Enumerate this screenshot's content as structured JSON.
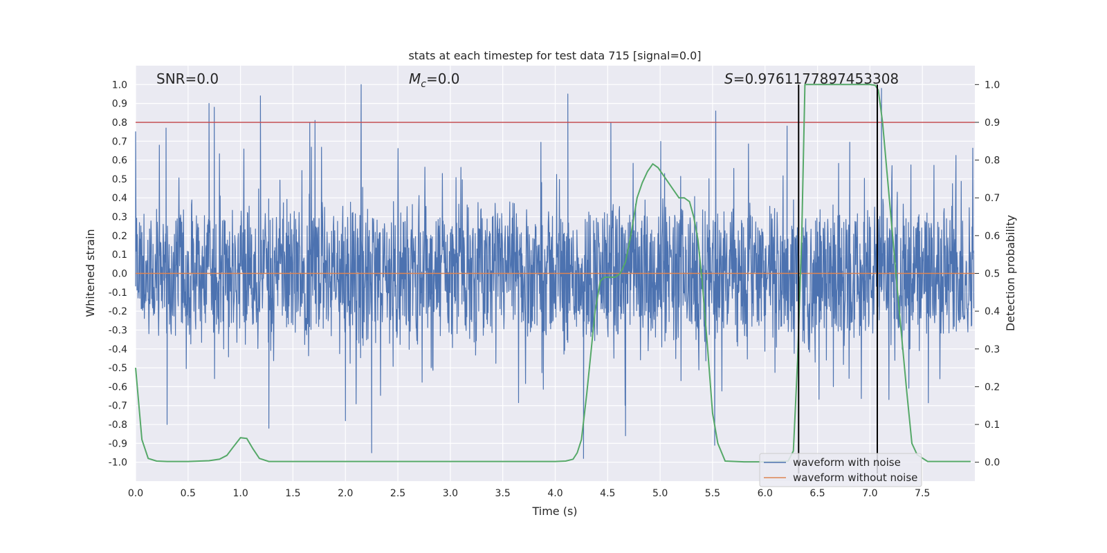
{
  "chart_data": {
    "type": "line",
    "title": "stats at each timestep for test data 715 [signal=0.0]",
    "xlabel": "Time (s)",
    "ylabel_left": "Whitened strain",
    "ylabel_right": "Detection probability",
    "xlim": [
      0.0,
      8.0
    ],
    "ylim_left": [
      -1.1,
      1.1
    ],
    "ylim_right": [
      -0.05,
      1.05
    ],
    "x_ticks": [
      "0.0",
      "0.5",
      "1.0",
      "1.5",
      "2.0",
      "2.5",
      "3.0",
      "3.5",
      "4.0",
      "4.5",
      "5.0",
      "5.5",
      "6.0",
      "6.5",
      "7.0",
      "7.5"
    ],
    "y_ticks_left": [
      "-1.0",
      "-0.9",
      "-0.8",
      "-0.7",
      "-0.6",
      "-0.5",
      "-0.4",
      "-0.3",
      "-0.2",
      "-0.1",
      "0.0",
      "0.1",
      "0.2",
      "0.3",
      "0.4",
      "0.5",
      "0.6",
      "0.7",
      "0.8",
      "0.9",
      "1.0"
    ],
    "y_ticks_right": [
      "0.0",
      "0.1",
      "0.2",
      "0.3",
      "0.4",
      "0.5",
      "0.6",
      "0.7",
      "0.8",
      "0.9",
      "1.0"
    ],
    "annotations": {
      "snr": "SNR=0.0",
      "mc_symbol": "M",
      "mc_sub": "c",
      "mc_value": "=0.0",
      "s_symbol": "S",
      "s_value": "=0.9761177897453308"
    },
    "legend": {
      "placement": "lower-right",
      "entries": [
        "waveform with noise",
        "waveform without noise"
      ]
    },
    "threshold_right": 0.9,
    "vertical_markers_x": [
      6.32,
      7.07
    ],
    "noisy_waveform_envelope": {
      "max_abs_typical": 0.42,
      "spike_peaks_positive": [
        {
          "x": 0.0,
          "y": 0.75
        },
        {
          "x": 0.29,
          "y": 0.77
        },
        {
          "x": 0.7,
          "y": 0.9
        },
        {
          "x": 0.75,
          "y": 0.88
        },
        {
          "x": 1.19,
          "y": 0.94
        },
        {
          "x": 1.66,
          "y": 0.8
        },
        {
          "x": 1.71,
          "y": 0.81
        },
        {
          "x": 2.15,
          "y": 1.0
        },
        {
          "x": 4.12,
          "y": 0.95
        },
        {
          "x": 4.53,
          "y": 0.8
        },
        {
          "x": 5.53,
          "y": 0.86
        },
        {
          "x": 6.21,
          "y": 0.78
        },
        {
          "x": 7.11,
          "y": 0.98
        }
      ],
      "spike_peaks_negative": [
        {
          "x": 0.3,
          "y": -0.8
        },
        {
          "x": 1.27,
          "y": -0.82
        },
        {
          "x": 2.0,
          "y": -0.78
        },
        {
          "x": 2.25,
          "y": -0.95
        },
        {
          "x": 4.27,
          "y": -0.98
        },
        {
          "x": 4.67,
          "y": -0.86
        },
        {
          "x": 5.52,
          "y": -0.91
        }
      ]
    },
    "clean_waveform": {
      "x": [
        0.0,
        8.0
      ],
      "y": [
        0.0,
        0.0
      ]
    },
    "detection_probability": {
      "x": [
        0.0,
        0.06,
        0.12,
        0.2,
        0.3,
        0.5,
        0.7,
        0.8,
        0.87,
        0.93,
        1.0,
        1.06,
        1.12,
        1.18,
        1.27,
        1.5,
        2.0,
        3.0,
        4.0,
        4.1,
        4.17,
        4.21,
        4.25,
        4.3,
        4.34,
        4.38,
        4.43,
        4.47,
        4.52,
        4.57,
        4.62,
        4.67,
        4.72,
        4.78,
        4.83,
        4.88,
        4.93,
        4.98,
        5.03,
        5.08,
        5.13,
        5.18,
        5.23,
        5.28,
        5.32,
        5.36,
        5.4,
        5.45,
        5.5,
        5.55,
        5.62,
        5.8,
        6.0,
        6.22,
        6.27,
        6.31,
        6.35,
        6.38,
        6.45,
        6.7,
        7.0,
        7.05,
        7.08,
        7.12,
        7.2,
        7.28,
        7.35,
        7.4,
        7.45,
        7.55,
        7.96
      ],
      "y": [
        0.25,
        0.06,
        0.01,
        0.003,
        0.002,
        0.002,
        0.004,
        0.008,
        0.018,
        0.04,
        0.065,
        0.063,
        0.035,
        0.01,
        0.002,
        0.002,
        0.002,
        0.002,
        0.002,
        0.003,
        0.008,
        0.025,
        0.06,
        0.18,
        0.29,
        0.4,
        0.48,
        0.49,
        0.49,
        0.49,
        0.5,
        0.53,
        0.6,
        0.7,
        0.74,
        0.77,
        0.79,
        0.78,
        0.76,
        0.74,
        0.72,
        0.7,
        0.7,
        0.69,
        0.65,
        0.59,
        0.48,
        0.31,
        0.13,
        0.05,
        0.003,
        0.001,
        0.001,
        0.003,
        0.03,
        0.27,
        0.6,
        1.0,
        1.0,
        1.0,
        1.0,
        0.998,
        0.985,
        0.9,
        0.65,
        0.4,
        0.19,
        0.05,
        0.02,
        0.002,
        0.002
      ]
    },
    "colors": {
      "background": "#eaeaf2",
      "grid": "#ffffff",
      "noisy": "#4c72b0",
      "clean": "#dd8452",
      "probability": "#55a868",
      "threshold": "#c44e52",
      "markers": "#000000"
    }
  }
}
